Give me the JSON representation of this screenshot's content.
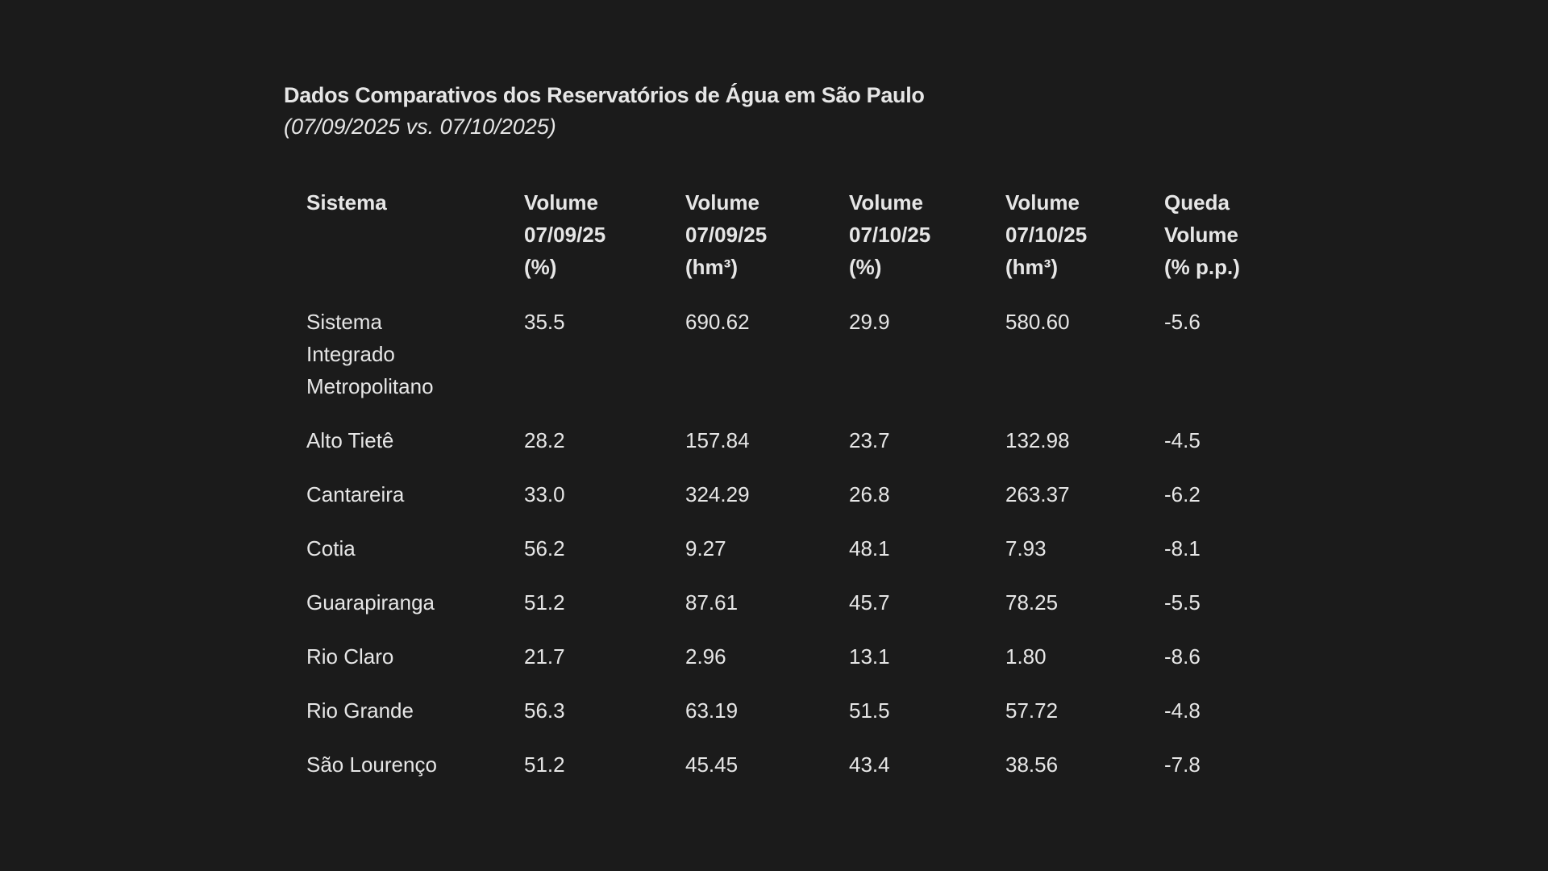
{
  "header": {
    "title": "Dados Comparativos dos Reservatórios de Água em São Paulo",
    "subtitle": "(07/09/2025 vs. 07/10/2025)"
  },
  "table": {
    "columns": [
      [
        "Sistema"
      ],
      [
        "Volume",
        "07/09/25",
        "(%)"
      ],
      [
        "Volume",
        "07/09/25",
        "(hm³)"
      ],
      [
        "Volume",
        "07/10/25",
        "(%)"
      ],
      [
        "Volume",
        "07/10/25",
        "(hm³)"
      ],
      [
        "Queda",
        "Volume",
        "(% p.p.)"
      ]
    ],
    "rows": [
      [
        "Sistema Integrado Metropolitano",
        "35.5",
        "690.62",
        "29.9",
        "580.60",
        "-5.6"
      ],
      [
        "Alto Tietê",
        "28.2",
        "157.84",
        "23.7",
        "132.98",
        "-4.5"
      ],
      [
        "Cantareira",
        "33.0",
        "324.29",
        "26.8",
        "263.37",
        "-6.2"
      ],
      [
        "Cotia",
        "56.2",
        "9.27",
        "48.1",
        "7.93",
        "-8.1"
      ],
      [
        "Guarapiranga",
        "51.2",
        "87.61",
        "45.7",
        "78.25",
        "-5.5"
      ],
      [
        "Rio Claro",
        "21.7",
        "2.96",
        "13.1",
        "1.80",
        "-8.6"
      ],
      [
        "Rio Grande",
        "56.3",
        "63.19",
        "51.5",
        "57.72",
        "-4.8"
      ],
      [
        "São Lourenço",
        "51.2",
        "45.45",
        "43.4",
        "38.56",
        "-7.8"
      ]
    ]
  }
}
